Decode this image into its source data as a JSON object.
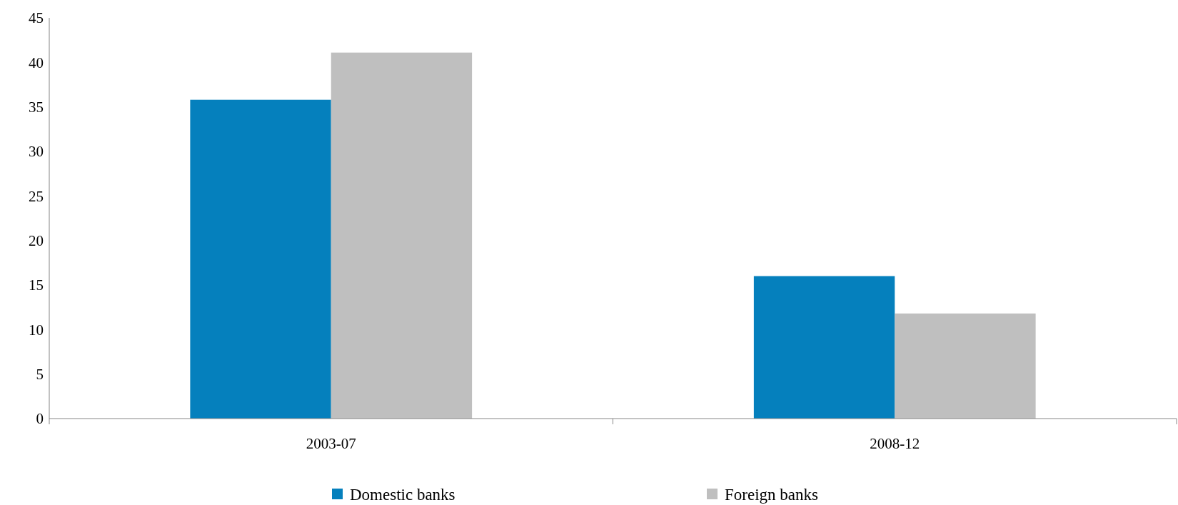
{
  "chart_data": {
    "type": "bar",
    "categories": [
      "2003-07",
      "2008-12"
    ],
    "series": [
      {
        "name": "Domestic banks",
        "color": "#0580bd",
        "values": [
          35.8,
          16.0
        ]
      },
      {
        "name": "Foreign banks",
        "color": "#bfbfbf",
        "values": [
          41.1,
          11.8
        ]
      }
    ],
    "ylim": [
      0,
      45
    ],
    "yticks": [
      0,
      5,
      10,
      15,
      20,
      25,
      30,
      35,
      40,
      45
    ],
    "grid": false,
    "legend": "bottom"
  }
}
